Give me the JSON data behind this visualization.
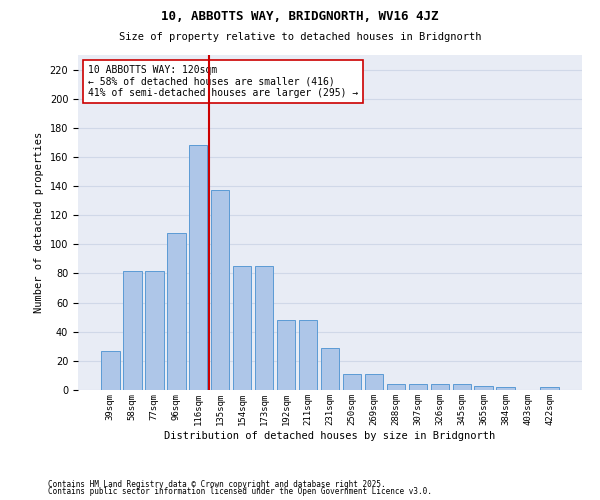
{
  "title1": "10, ABBOTTS WAY, BRIDGNORTH, WV16 4JZ",
  "title2": "Size of property relative to detached houses in Bridgnorth",
  "xlabel": "Distribution of detached houses by size in Bridgnorth",
  "ylabel": "Number of detached properties",
  "categories": [
    "39sqm",
    "58sqm",
    "77sqm",
    "96sqm",
    "116sqm",
    "135sqm",
    "154sqm",
    "173sqm",
    "192sqm",
    "211sqm",
    "231sqm",
    "250sqm",
    "269sqm",
    "288sqm",
    "307sqm",
    "326sqm",
    "345sqm",
    "365sqm",
    "384sqm",
    "403sqm",
    "422sqm"
  ],
  "values": [
    27,
    82,
    82,
    108,
    168,
    137,
    85,
    85,
    48,
    48,
    29,
    11,
    11,
    4,
    4,
    4,
    4,
    3,
    2,
    0,
    2
  ],
  "bar_color": "#aec6e8",
  "bar_edge_color": "#5b9bd5",
  "vline_x": 4.5,
  "vline_color": "#cc0000",
  "annotation_text": "10 ABBOTTS WAY: 120sqm\n← 58% of detached houses are smaller (416)\n41% of semi-detached houses are larger (295) →",
  "annotation_box_color": "#ffffff",
  "annotation_box_edge": "#cc0000",
  "grid_color": "#d0d8e8",
  "bg_color": "#e8ecf5",
  "ylim": [
    0,
    230
  ],
  "yticks": [
    0,
    20,
    40,
    60,
    80,
    100,
    120,
    140,
    160,
    180,
    200,
    220
  ],
  "footer1": "Contains HM Land Registry data © Crown copyright and database right 2025.",
  "footer2": "Contains public sector information licensed under the Open Government Licence v3.0."
}
